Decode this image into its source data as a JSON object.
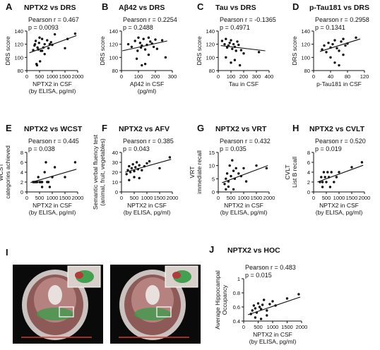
{
  "chart_data": [
    {
      "panel": "A",
      "title": "NPTX2 vs DRS",
      "type": "scatter",
      "stats": [
        "Pearson r = 0.467",
        "p = 0.0093"
      ],
      "ylabel": [
        "DRS score"
      ],
      "xlabel": [
        "NPTX2 in CSF",
        "(by ELISA, pg/ml)"
      ],
      "xticks": [
        0,
        500,
        1000,
        1500,
        2000
      ],
      "yticks": [
        80,
        100,
        120,
        140
      ],
      "xlim": [
        0,
        2000
      ],
      "ylim": [
        80,
        140
      ],
      "trend": [
        [
          100,
          107
        ],
        [
          1950,
          133
        ]
      ],
      "x": [
        250,
        300,
        320,
        350,
        380,
        420,
        450,
        480,
        500,
        550,
        600,
        650,
        700,
        800,
        850,
        900,
        950,
        1000,
        1100,
        1500,
        1600,
        1900,
        400,
        520,
        600,
        700
      ],
      "y": [
        111,
        118,
        120,
        125,
        90,
        115,
        112,
        122,
        130,
        110,
        128,
        115,
        120,
        126,
        114,
        120,
        123,
        119,
        135,
        114,
        128,
        136,
        88,
        94,
        110,
        105
      ]
    },
    {
      "panel": "B",
      "title": "Aβ42 vs DRS",
      "type": "scatter",
      "stats": [
        "Pearson r = 0.2254",
        "p = 0.2488"
      ],
      "ylabel": [
        "DRS score"
      ],
      "xlabel": [
        "Aβ42 in CSF",
        "(pg/ml)"
      ],
      "xticks": [
        0,
        100,
        200,
        300
      ],
      "yticks": [
        80,
        100,
        120,
        140
      ],
      "xlim": [
        0,
        300
      ],
      "ylim": [
        80,
        140
      ],
      "trend": [
        [
          5,
          110
        ],
        [
          270,
          125
        ]
      ],
      "x": [
        40,
        60,
        80,
        95,
        100,
        110,
        115,
        120,
        130,
        140,
        150,
        160,
        170,
        180,
        190,
        200,
        210,
        240,
        260,
        90,
        120,
        140,
        160
      ],
      "y": [
        120,
        116,
        125,
        110,
        130,
        122,
        115,
        118,
        128,
        112,
        119,
        130,
        124,
        121,
        116,
        127,
        113,
        126,
        100,
        98,
        88,
        90,
        104
      ]
    },
    {
      "panel": "C",
      "title": "Tau vs DRS",
      "type": "scatter",
      "stats": [
        "Pearson r = -0.1365",
        "p = 0.4971"
      ],
      "ylabel": [
        "DRS score"
      ],
      "xlabel": [
        "Tau in CSF"
      ],
      "xticks": [
        0,
        100,
        200,
        300,
        400
      ],
      "yticks": [
        80,
        100,
        120,
        140
      ],
      "xlim": [
        0,
        400
      ],
      "ylim": [
        80,
        140
      ],
      "trend": [
        [
          20,
          118
        ],
        [
          370,
          110
        ]
      ],
      "x": [
        30,
        50,
        60,
        70,
        80,
        90,
        100,
        110,
        120,
        130,
        140,
        150,
        160,
        180,
        200,
        60,
        100,
        130,
        170,
        320
      ],
      "y": [
        125,
        120,
        128,
        115,
        118,
        122,
        126,
        113,
        120,
        116,
        110,
        124,
        119,
        111,
        106,
        100,
        92,
        96,
        88,
        108
      ]
    },
    {
      "panel": "D",
      "title": "p-Tau181 vs DRS",
      "type": "scatter",
      "stats": [
        "Pearson r = 0.2958",
        "p = 0.1341"
      ],
      "ylabel": [
        "DRS score"
      ],
      "xlabel": [
        "p-Tau181 in CSF"
      ],
      "xticks": [
        0,
        40,
        80,
        120
      ],
      "yticks": [
        80,
        100,
        120,
        140
      ],
      "xlim": [
        0,
        120
      ],
      "ylim": [
        80,
        140
      ],
      "trend": [
        [
          15,
          109
        ],
        [
          110,
          128
        ]
      ],
      "x": [
        20,
        25,
        30,
        35,
        40,
        45,
        50,
        55,
        60,
        65,
        70,
        75,
        80,
        100,
        40,
        50,
        60,
        70
      ],
      "y": [
        112,
        118,
        108,
        122,
        115,
        120,
        126,
        114,
        110,
        124,
        128,
        118,
        121,
        130,
        100,
        92,
        88,
        104
      ]
    },
    {
      "panel": "E",
      "title": "NPTX2 vs WCST",
      "type": "scatter",
      "stats": [
        "Pearson r = 0.445",
        "p = 0.038"
      ],
      "ylabel": [
        "WCST",
        "categories achieved"
      ],
      "xlabel": [
        "NPTX2 in CSF",
        "(by ELISA, pg/ml)"
      ],
      "xticks": [
        0,
        500,
        1000,
        1500,
        2000
      ],
      "yticks": [
        0,
        2,
        4,
        6,
        8
      ],
      "xlim": [
        0,
        2000
      ],
      "ylim": [
        0,
        8
      ],
      "trend": [
        [
          150,
          1.9
        ],
        [
          1950,
          4.6
        ]
      ],
      "x": [
        250,
        300,
        350,
        400,
        450,
        500,
        550,
        600,
        700,
        800,
        900,
        1000,
        1100,
        1500,
        1900,
        600,
        750,
        850
      ],
      "y": [
        2,
        2,
        2,
        2,
        3,
        2,
        2,
        2,
        4,
        2,
        1,
        3,
        5,
        3,
        6,
        1,
        6,
        2
      ]
    },
    {
      "panel": "F",
      "title": "NPTX2 vs AFV",
      "type": "scatter",
      "stats": [
        "Pearson r = 0.385",
        "p = 0.043"
      ],
      "ylabel": [
        "Semantic verbal fluency test",
        "(animal, fruit, vegetables)"
      ],
      "xlabel": [
        "NPTX2 in CSF",
        "(by ELISA, pg/ml)"
      ],
      "xticks": [
        0,
        500,
        1000,
        1500,
        2000
      ],
      "yticks": [
        0,
        10,
        20,
        30,
        40
      ],
      "xlim": [
        0,
        2000
      ],
      "ylim": [
        0,
        40
      ],
      "trend": [
        [
          150,
          20
        ],
        [
          1950,
          33
        ]
      ],
      "x": [
        200,
        250,
        300,
        350,
        400,
        450,
        500,
        550,
        600,
        650,
        700,
        800,
        900,
        1000,
        1100,
        1500,
        1900,
        300,
        500,
        700
      ],
      "y": [
        18,
        22,
        26,
        20,
        24,
        28,
        21,
        25,
        30,
        23,
        27,
        22,
        26,
        29,
        31,
        24,
        35,
        12,
        15,
        14
      ]
    },
    {
      "panel": "G",
      "title": "NPTX2 vs VRT",
      "type": "scatter",
      "stats": [
        "Pearson r = 0.432",
        "p = 0.035"
      ],
      "ylabel": [
        "VRT",
        "immediate recall"
      ],
      "xlabel": [
        "NPTX2 in CSF",
        "(by ELISA, pg/ml)"
      ],
      "xticks": [
        0,
        500,
        1000,
        1500,
        2000
      ],
      "yticks": [
        0,
        5,
        10,
        15
      ],
      "xlim": [
        0,
        2000
      ],
      "ylim": [
        0,
        15
      ],
      "trend": [
        [
          150,
          3.5
        ],
        [
          1950,
          10
        ]
      ],
      "x": [
        250,
        300,
        350,
        400,
        450,
        500,
        550,
        600,
        650,
        700,
        800,
        900,
        1000,
        1100,
        1500,
        1900,
        300,
        400,
        600
      ],
      "y": [
        3,
        5,
        7,
        4,
        10,
        6,
        12,
        8,
        5,
        9,
        7,
        6,
        9,
        4,
        10,
        9,
        1,
        2,
        1
      ]
    },
    {
      "panel": "H",
      "title": "NPTX2 vs CVLT",
      "type": "scatter",
      "stats": [
        "Pearson r = 0.520",
        "p = 0.019"
      ],
      "ylabel": [
        "CVLT",
        "List B recall"
      ],
      "xlabel": [
        "NPTX2 in CSF",
        "(by ELISA, pg/ml)"
      ],
      "xticks": [
        0,
        500,
        1000,
        1500,
        2000
      ],
      "yticks": [
        0,
        2,
        4,
        6,
        8
      ],
      "xlim": [
        0,
        2000
      ],
      "ylim": [
        0,
        8
      ],
      "trend": [
        [
          150,
          2
        ],
        [
          1950,
          5.4
        ]
      ],
      "x": [
        250,
        300,
        350,
        400,
        450,
        500,
        550,
        600,
        700,
        800,
        900,
        1000,
        1500,
        1900,
        350,
        650
      ],
      "y": [
        2,
        3,
        2,
        4,
        3,
        2,
        4,
        3,
        4,
        2,
        3,
        4,
        5,
        6,
        1,
        1
      ]
    },
    {
      "panel": "J",
      "title": "NPTX2 vs HOC",
      "type": "scatter",
      "stats": [
        "Pearson r = 0.483",
        "p = 0.015"
      ],
      "ylabel": [
        "Average Hippocampal",
        "Occupancy"
      ],
      "xlabel": [
        "NPTX2 in CSF",
        "(by ELISA, pg/ml)"
      ],
      "xticks": [
        0,
        500,
        1000,
        1500,
        2000
      ],
      "yticks": [
        0.4,
        0.6,
        0.8,
        1.0
      ],
      "xlim": [
        0,
        2000
      ],
      "ylim": [
        0.4,
        1.0
      ],
      "trend": [
        [
          150,
          0.49
        ],
        [
          1950,
          0.74
        ]
      ],
      "x": [
        250,
        300,
        350,
        400,
        450,
        500,
        550,
        600,
        650,
        700,
        800,
        900,
        1000,
        1100,
        1500,
        1900,
        400,
        600,
        800
      ],
      "y": [
        0.5,
        0.55,
        0.62,
        0.58,
        0.52,
        0.65,
        0.6,
        0.57,
        0.63,
        0.7,
        0.55,
        0.64,
        0.68,
        0.62,
        0.72,
        0.78,
        0.45,
        0.43,
        0.48
      ]
    }
  ],
  "panel_I": {
    "label": "I"
  },
  "colors": {
    "axis": "#111111",
    "marker": "#111111",
    "trend": "#111111"
  }
}
